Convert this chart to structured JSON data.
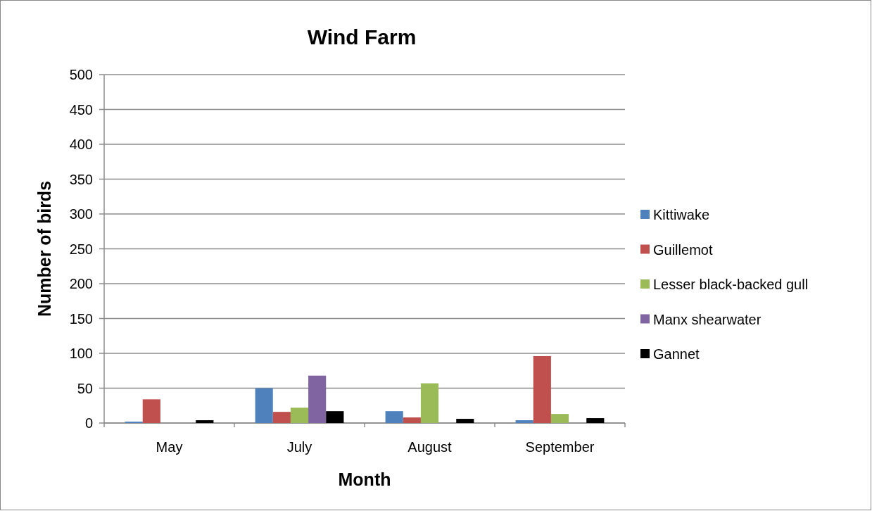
{
  "chart_data": {
    "type": "bar",
    "title": "Wind Farm",
    "xlabel": "Month",
    "ylabel": "Number of birds",
    "categories": [
      "May",
      "July",
      "August",
      "September"
    ],
    "series": [
      {
        "name": "Kittiwake",
        "color": "#4f81bd",
        "values": [
          2,
          50,
          17,
          4
        ]
      },
      {
        "name": "Guillemot",
        "color": "#c0504d",
        "values": [
          34,
          16,
          8,
          96
        ]
      },
      {
        "name": "Lesser black-backed gull",
        "color": "#9bbb59",
        "values": [
          0,
          22,
          57,
          13
        ]
      },
      {
        "name": "Manx shearwater",
        "color": "#8064a2",
        "values": [
          0,
          68,
          0,
          0
        ]
      },
      {
        "name": "Gannet",
        "color": "#000000",
        "values": [
          4,
          17,
          6,
          7
        ]
      }
    ],
    "ylim": [
      0,
      500
    ],
    "yticks": [
      0,
      50,
      100,
      150,
      200,
      250,
      300,
      350,
      400,
      450,
      500
    ],
    "grid": "y",
    "legend": "right"
  }
}
